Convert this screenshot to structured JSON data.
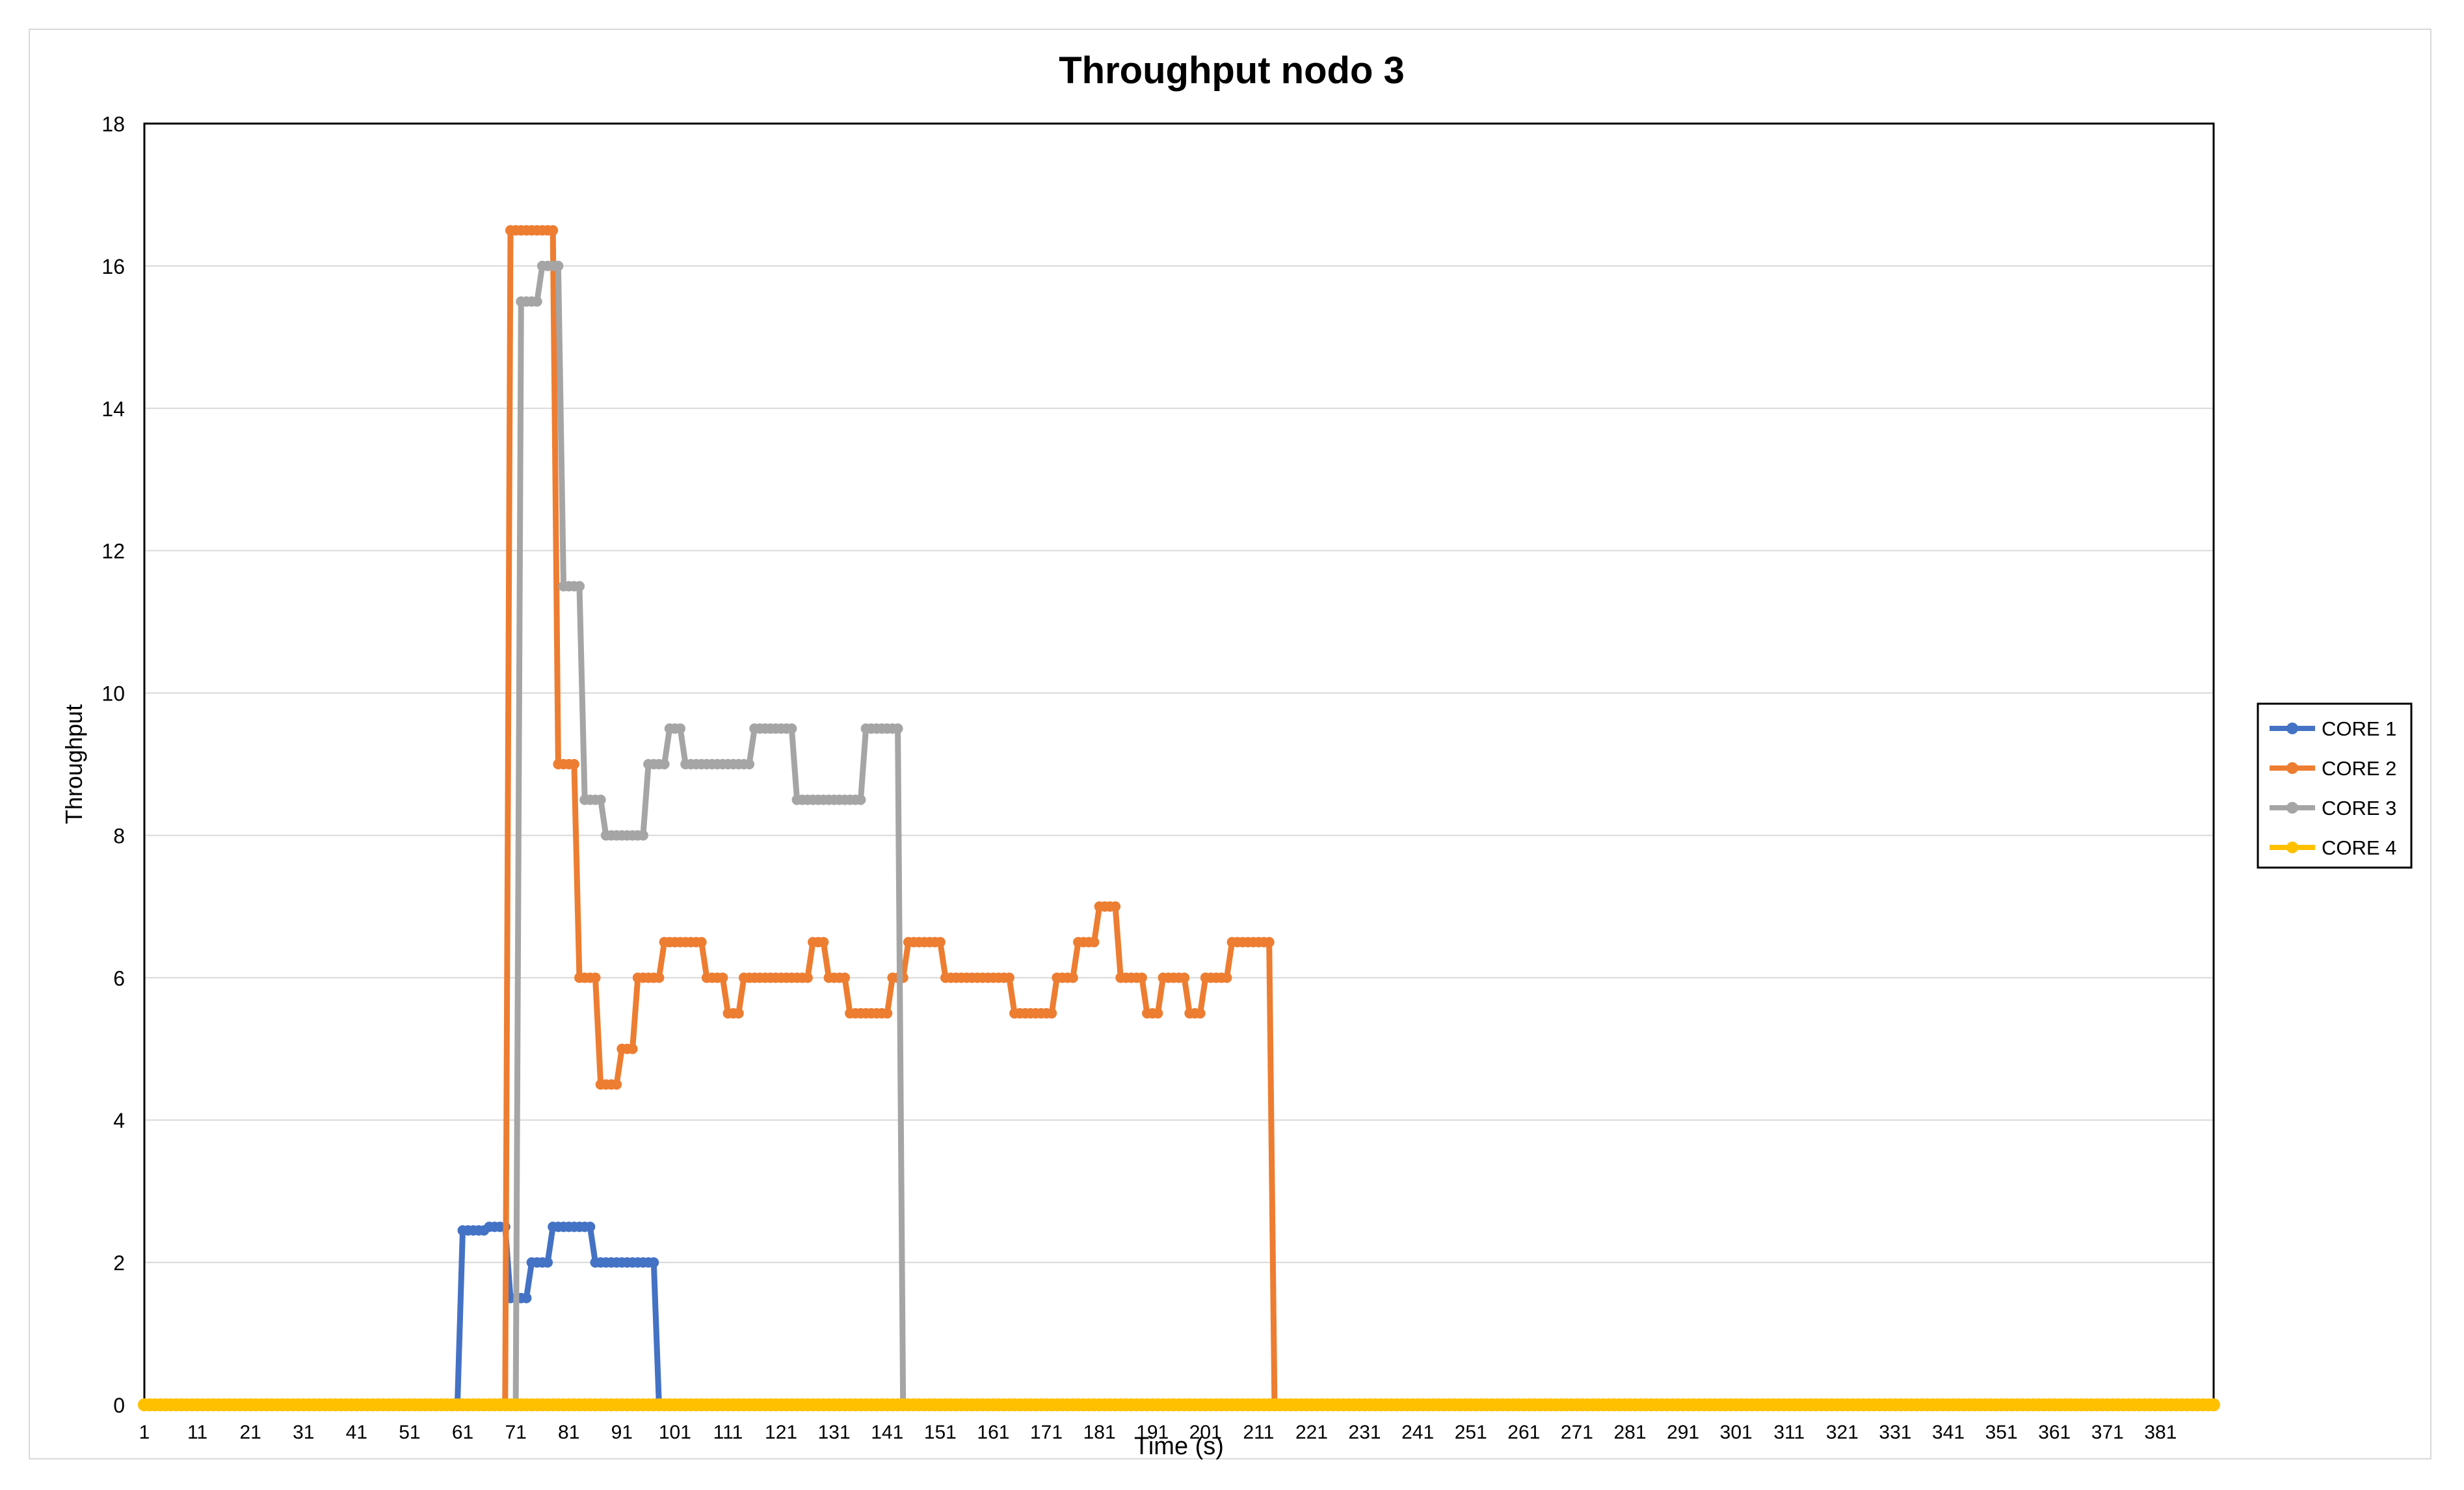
{
  "chart_data": {
    "type": "line",
    "title": "Throughput nodo 3",
    "xlabel": "Time (s)",
    "ylabel": "Throughput",
    "x_start": 1,
    "x_end": 391,
    "xticks": [
      "1",
      "11",
      "21",
      "31",
      "41",
      "51",
      "61",
      "71",
      "81",
      "91",
      "101",
      "111",
      "121",
      "131",
      "141",
      "151",
      "161",
      "171",
      "181",
      "191",
      "201",
      "211",
      "221",
      "231",
      "241",
      "251",
      "261",
      "271",
      "281",
      "291",
      "301",
      "311",
      "321",
      "331",
      "341",
      "351",
      "361",
      "371",
      "381"
    ],
    "ylim": [
      0,
      18
    ],
    "yticks": [
      "0",
      "2",
      "4",
      "6",
      "8",
      "10",
      "12",
      "14",
      "16",
      "18"
    ],
    "grid": true,
    "legend_position": "right",
    "series": [
      {
        "name": "CORE 1",
        "color": "#4472C4",
        "segments": [
          [
            1,
            0
          ],
          [
            60,
            0
          ],
          [
            61,
            2.45
          ],
          [
            65,
            2.45
          ],
          [
            66,
            2.5
          ],
          [
            69,
            2.5
          ],
          [
            70,
            1.5
          ],
          [
            73,
            1.5
          ],
          [
            74,
            2
          ],
          [
            77,
            2
          ],
          [
            78,
            2.5
          ],
          [
            85,
            2.5
          ],
          [
            86,
            2
          ],
          [
            97,
            2
          ],
          [
            98,
            0
          ],
          [
            391,
            0
          ]
        ]
      },
      {
        "name": "CORE 2",
        "color": "#ED7D31",
        "segments": [
          [
            1,
            0
          ],
          [
            69,
            0
          ],
          [
            70,
            16.5
          ],
          [
            78,
            16.5
          ],
          [
            79,
            9
          ],
          [
            82,
            9
          ],
          [
            83,
            6
          ],
          [
            86,
            6
          ],
          [
            87,
            4.5
          ],
          [
            90,
            4.5
          ],
          [
            91,
            5
          ],
          [
            93,
            5
          ],
          [
            94,
            6
          ],
          [
            98,
            6
          ],
          [
            99,
            6.5
          ],
          [
            106,
            6.5
          ],
          [
            107,
            6
          ],
          [
            110,
            6
          ],
          [
            111,
            5.5
          ],
          [
            113,
            5.5
          ],
          [
            114,
            6
          ],
          [
            126,
            6
          ],
          [
            127,
            6.5
          ],
          [
            129,
            6.5
          ],
          [
            130,
            6
          ],
          [
            133,
            6
          ],
          [
            134,
            5.5
          ],
          [
            141,
            5.5
          ],
          [
            142,
            6
          ],
          [
            144,
            6
          ],
          [
            145,
            6.5
          ],
          [
            151,
            6.5
          ],
          [
            152,
            6
          ],
          [
            164,
            6
          ],
          [
            165,
            5.5
          ],
          [
            172,
            5.5
          ],
          [
            173,
            6
          ],
          [
            176,
            6
          ],
          [
            177,
            6.5
          ],
          [
            180,
            6.5
          ],
          [
            181,
            7
          ],
          [
            184,
            7
          ],
          [
            185,
            6
          ],
          [
            189,
            6
          ],
          [
            190,
            5.5
          ],
          [
            192,
            5.5
          ],
          [
            193,
            6
          ],
          [
            197,
            6
          ],
          [
            198,
            5.5
          ],
          [
            200,
            5.5
          ],
          [
            201,
            6
          ],
          [
            205,
            6
          ],
          [
            206,
            6.5
          ],
          [
            213,
            6.5
          ],
          [
            214,
            0
          ],
          [
            391,
            0
          ]
        ]
      },
      {
        "name": "CORE 3",
        "color": "#A5A5A5",
        "segments": [
          [
            1,
            0
          ],
          [
            71,
            0
          ],
          [
            72,
            15.5
          ],
          [
            75,
            15.5
          ],
          [
            76,
            16
          ],
          [
            79,
            16
          ],
          [
            80,
            11.5
          ],
          [
            83,
            11.5
          ],
          [
            84,
            8.5
          ],
          [
            87,
            8.5
          ],
          [
            88,
            8
          ],
          [
            95,
            8
          ],
          [
            96,
            9
          ],
          [
            99,
            9
          ],
          [
            100,
            9.5
          ],
          [
            102,
            9.5
          ],
          [
            103,
            9
          ],
          [
            115,
            9
          ],
          [
            116,
            9.5
          ],
          [
            123,
            9.5
          ],
          [
            124,
            8.5
          ],
          [
            136,
            8.5
          ],
          [
            137,
            9.5
          ],
          [
            143,
            9.5
          ],
          [
            144,
            0
          ],
          [
            391,
            0
          ]
        ]
      },
      {
        "name": "CORE 4",
        "color": "#FFC000",
        "segments": [
          [
            1,
            0
          ],
          [
            391,
            0
          ]
        ]
      }
    ]
  }
}
